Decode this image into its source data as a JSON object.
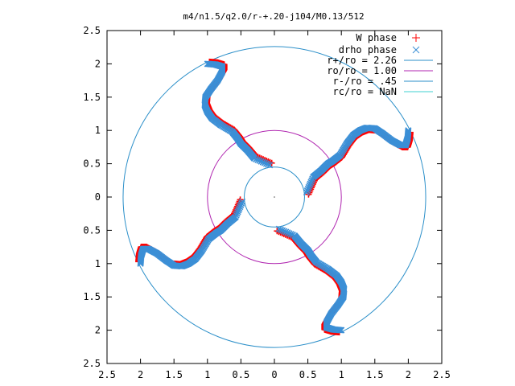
{
  "chart_data": {
    "type": "scatter",
    "title": "m4/n1.5/q2.0/r-+.20-j104/M0.13/512",
    "xlim": [
      -2.5,
      2.5
    ],
    "ylim": [
      -2.5,
      2.5
    ],
    "xticks": [
      {
        "value": -2.5,
        "label": "2.5"
      },
      {
        "value": -2.0,
        "label": "2"
      },
      {
        "value": -1.5,
        "label": "1.5"
      },
      {
        "value": -1.0,
        "label": "1"
      },
      {
        "value": -0.5,
        "label": "0.5"
      },
      {
        "value": 0.0,
        "label": "0"
      },
      {
        "value": 0.5,
        "label": "0.5"
      },
      {
        "value": 1.0,
        "label": "1"
      },
      {
        "value": 1.5,
        "label": "1.5"
      },
      {
        "value": 2.0,
        "label": "2"
      },
      {
        "value": 2.5,
        "label": "2.5"
      }
    ],
    "yticks": [
      {
        "value": 2.5,
        "label": "2.5"
      },
      {
        "value": 2.0,
        "label": "2"
      },
      {
        "value": 1.5,
        "label": "1.5"
      },
      {
        "value": 1.0,
        "label": "1"
      },
      {
        "value": 0.5,
        "label": "0.5"
      },
      {
        "value": 0.0,
        "label": "0"
      },
      {
        "value": -0.5,
        "label": "0.5"
      },
      {
        "value": -1.0,
        "label": "1"
      },
      {
        "value": -1.5,
        "label": "1.5"
      },
      {
        "value": -2.0,
        "label": "2"
      },
      {
        "value": -2.5,
        "label": "2.5"
      }
    ],
    "grid": false,
    "legend_position": "top-right",
    "arm_centerline": [
      [
        0.48,
        0.07
      ],
      [
        0.58,
        0.3
      ],
      [
        0.7,
        0.4
      ],
      [
        0.8,
        0.5
      ],
      [
        0.88,
        0.55
      ],
      [
        0.98,
        0.63
      ],
      [
        1.08,
        0.8
      ],
      [
        1.18,
        0.93
      ],
      [
        1.28,
        1.0
      ],
      [
        1.38,
        1.04
      ],
      [
        1.5,
        1.03
      ],
      [
        1.62,
        0.95
      ],
      [
        1.75,
        0.85
      ],
      [
        1.88,
        0.78
      ],
      [
        1.96,
        0.78
      ],
      [
        1.99,
        0.88
      ],
      [
        2.0,
        1.0
      ]
    ],
    "arm_rotations_deg": [
      0,
      90,
      180,
      270
    ],
    "w_phase_offset": [
      0.03,
      -0.03
    ],
    "series": [
      {
        "name": "W phase",
        "marker": "+",
        "color": "#ff0000"
      },
      {
        "name": "drho phase",
        "marker": "x",
        "color": "#3b8fd6"
      }
    ],
    "circles": [
      {
        "name": "r+/ro = 2.26",
        "radius": 2.26,
        "color": "#2b8fc9"
      },
      {
        "name": "ro/ro = 1.00",
        "radius": 1.0,
        "color": "#b026b0"
      },
      {
        "name": "r-/ro = .45",
        "radius": 0.45,
        "color": "#2b8fc9"
      },
      {
        "name": "rc/ro = NaN",
        "radius": 0,
        "color": "#3fd0d0"
      }
    ],
    "center_point": [
      0,
      0
    ]
  }
}
